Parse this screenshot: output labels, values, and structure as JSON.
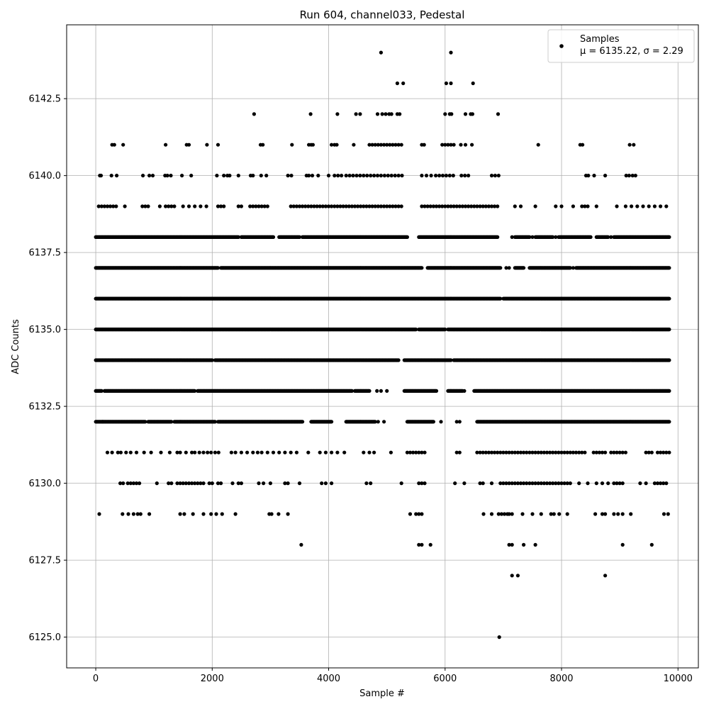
{
  "chart_data": {
    "type": "scatter",
    "title": "Run 604, channel033, Pedestal",
    "xlabel": "Sample #",
    "ylabel": "ADC Counts",
    "xlim": [
      -500,
      10350
    ],
    "ylim": [
      6124.0,
      6144.9
    ],
    "xticks": [
      0,
      2000,
      4000,
      6000,
      8000,
      10000
    ],
    "xtick_labels": [
      "0",
      "2000",
      "4000",
      "6000",
      "8000",
      "10000"
    ],
    "yticks": [
      6125.0,
      6127.5,
      6130.0,
      6132.5,
      6135.0,
      6137.5,
      6140.0,
      6142.5
    ],
    "ytick_labels": [
      "6125.0",
      "6127.5",
      "6130.0",
      "6132.5",
      "6135.0",
      "6137.5",
      "6140.0",
      "6142.5"
    ],
    "grid": true,
    "legend_position": "top-right",
    "marker_color": "#000000",
    "series": [
      {
        "name": "Samples",
        "legend_line2": "μ = 6135.22, σ = 2.29",
        "points_by_level": [
          {
            "y": 6144,
            "x": [
              4900,
              6100
            ]
          },
          {
            "y": 6143,
            "x": [
              5180,
              5280,
              6020,
              6100,
              6480
            ]
          },
          {
            "y": 6142,
            "x": [
              2720,
              3690,
              4150,
              4470,
              4540,
              4840,
              4920,
              4980,
              5040,
              5080,
              5180,
              5220,
              6000,
              6080,
              6110,
              6350,
              6440,
              6470,
              6910
            ]
          },
          {
            "y": 6141,
            "x": [
              280,
              320,
              470,
              1200,
              1560,
              1600,
              1910,
              2100,
              2830,
              2870,
              3370,
              3660,
              3700,
              3730,
              4050,
              4100,
              4140,
              4430,
              4700,
              4750,
              4800,
              4850,
              4900,
              4950,
              5000,
              5050,
              5100,
              5150,
              5200,
              5250,
              5600,
              5640,
              5950,
              6000,
              6050,
              6100,
              6150,
              6270,
              6350,
              6460,
              7600,
              8320,
              8360,
              9170,
              9240
            ]
          },
          {
            "y": 6140,
            "x": [
              70,
              90,
              270,
              360,
              810,
              920,
              980,
              1190,
              1230,
              1290,
              1480,
              1640,
              2080,
              2200,
              2260,
              2300,
              2450,
              2660,
              2700,
              2840,
              2930,
              3300,
              3360,
              3620,
              3660,
              3720,
              3820,
              4000,
              4100,
              4160,
              4220,
              4300,
              4360,
              4420,
              4480,
              4540,
              4600,
              4660,
              4720,
              4780,
              4840,
              4900,
              4960,
              5020,
              5080,
              5140,
              5200,
              5260,
              5600,
              5680,
              5760,
              5840,
              5900,
              5960,
              6020,
              6080,
              6140,
              6280,
              6340,
              6400,
              6800,
              6860,
              6920,
              8420,
              8460,
              8560,
              8750,
              9110,
              9160,
              9220,
              9270
            ]
          },
          {
            "y": 6139,
            "x": [
              50,
              100,
              150,
              200,
              250,
              300,
              350,
              500,
              800,
              850,
              900,
              1100,
              1200,
              1250,
              1300,
              1350,
              1500,
              1600,
              1700,
              1800,
              1900,
              2100,
              2150,
              2200,
              2450,
              2500,
              2650,
              2700,
              2750,
              2800,
              2850,
              2900,
              2950,
              3350,
              3400,
              3450,
              3500,
              3550,
              3600,
              3650,
              3700,
              3750,
              3800,
              3850,
              3900,
              3950,
              4000,
              4050,
              4100,
              4150,
              4200,
              4250,
              4300,
              4350,
              4400,
              4450,
              4500,
              4550,
              4600,
              4650,
              4700,
              4750,
              4800,
              4850,
              4900,
              4950,
              5000,
              5050,
              5100,
              5150,
              5200,
              5250,
              5600,
              5650,
              5700,
              5750,
              5800,
              5850,
              5900,
              5950,
              6000,
              6050,
              6100,
              6150,
              6200,
              6250,
              6300,
              6350,
              6400,
              6450,
              6500,
              6550,
              6600,
              6650,
              6700,
              6750,
              6800,
              6850,
              6900,
              7200,
              7300,
              7550,
              7900,
              8000,
              8200,
              8350,
              8400,
              8450,
              8600,
              8950,
              9100,
              9200,
              9300,
              9400,
              9500,
              9600,
              9700,
              9800
            ]
          },
          {
            "y": 6138,
            "x_ranges": [
              [
                0,
                2450
              ],
              [
                2500,
                3050
              ],
              [
                3150,
                3500
              ],
              [
                3550,
                5350
              ],
              [
                5550,
                6900
              ],
              [
                7200,
                7450
              ],
              [
                7550,
                7850
              ],
              [
                7950,
                8500
              ],
              [
                8600,
                8800
              ],
              [
                8900,
                9850
              ]
            ],
            "x": [
              7150,
              7500,
              7900,
              8850
            ]
          },
          {
            "y": 6137,
            "x_ranges": [
              [
                0,
                2100
              ],
              [
                2150,
                5600
              ],
              [
                5700,
                6950
              ],
              [
                7200,
                7350
              ],
              [
                7450,
                8150
              ],
              [
                8250,
                9850
              ]
            ],
            "x": [
              7050,
              7100,
              8200
            ]
          },
          {
            "y": 6136,
            "x_ranges": [
              [
                0,
                6950
              ],
              [
                7000,
                9850
              ]
            ]
          },
          {
            "y": 6135,
            "x_ranges": [
              [
                0,
                5500
              ],
              [
                5550,
                6000
              ],
              [
                6050,
                9850
              ]
            ]
          },
          {
            "y": 6134,
            "x_ranges": [
              [
                0,
                2000
              ],
              [
                2050,
                5200
              ],
              [
                5300,
                6100
              ],
              [
                6150,
                9850
              ]
            ]
          },
          {
            "y": 6133,
            "x_ranges": [
              [
                0,
                100
              ],
              [
                150,
                1700
              ],
              [
                1750,
                4400
              ],
              [
                4450,
                4700
              ],
              [
                5300,
                5850
              ],
              [
                6050,
                6300
              ],
              [
                6500,
                9850
              ]
            ],
            "x": [
              4830,
              4900,
              5000,
              6330
            ]
          },
          {
            "y": 6132,
            "x_ranges": [
              [
                0,
                850
              ],
              [
                900,
                1300
              ],
              [
                1350,
                2050
              ],
              [
                2100,
                3550
              ],
              [
                3700,
                4050
              ],
              [
                4300,
                4800
              ],
              [
                5350,
                5800
              ],
              [
                6550,
                9850
              ]
            ],
            "x": [
              120,
              4850,
              4950,
              5930,
              6200,
              6250
            ]
          },
          {
            "y": 6131,
            "x": [
              200,
              280,
              380,
              430,
              520,
              600,
              700,
              830,
              950,
              1120,
              1270,
              1400,
              1450,
              1550,
              1650,
              1700,
              1780,
              1850,
              1920,
              1980,
              2050,
              2110,
              2330,
              2400,
              2500,
              2600,
              2700,
              2780,
              2850,
              2950,
              3050,
              3150,
              3250,
              3350,
              3450,
              3650,
              3850,
              3950,
              4050,
              4150,
              4270,
              4600,
              4700,
              4780,
              5070,
              5350,
              5400,
              5450,
              5500,
              5550,
              5600,
              5650,
              6200,
              6250,
              6550,
              6600,
              6650,
              6700,
              6750,
              6800,
              6850,
              6900,
              6950,
              7000,
              7050,
              7100,
              7150,
              7200,
              7250,
              7300,
              7350,
              7400,
              7450,
              7500,
              7550,
              7600,
              7650,
              7700,
              7750,
              7800,
              7850,
              7900,
              7950,
              8000,
              8050,
              8100,
              8150,
              8200,
              8250,
              8300,
              8350,
              8400,
              8550,
              8600,
              8650,
              8700,
              8750,
              8850,
              8900,
              8950,
              9000,
              9050,
              9100,
              9450,
              9500,
              9550,
              9650,
              9700,
              9750,
              9800,
              9850
            ]
          },
          {
            "y": 6130,
            "x": [
              420,
              470,
              550,
              600,
              650,
              700,
              750,
              1050,
              1250,
              1300,
              1400,
              1450,
              1500,
              1550,
              1600,
              1650,
              1700,
              1750,
              1800,
              1850,
              1950,
              2000,
              2100,
              2150,
              2350,
              2450,
              2500,
              2800,
              2880,
              3000,
              3250,
              3300,
              3500,
              3880,
              3950,
              4050,
              4650,
              4720,
              5250,
              5550,
              5600,
              5650,
              6170,
              6330,
              6600,
              6650,
              6800,
              6950,
              7000,
              7050,
              7100,
              7150,
              7200,
              7250,
              7300,
              7350,
              7400,
              7450,
              7500,
              7550,
              7600,
              7650,
              7700,
              7750,
              7800,
              7850,
              7900,
              7950,
              8000,
              8050,
              8100,
              8150,
              8300,
              8450,
              8600,
              8700,
              8800,
              8900,
              8950,
              9000,
              9050,
              9350,
              9450,
              9600,
              9650,
              9700,
              9750,
              9800
            ]
          },
          {
            "y": 6129,
            "x": [
              60,
              460,
              560,
              650,
              720,
              770,
              920,
              1450,
              1520,
              1670,
              1850,
              1980,
              2070,
              2170,
              2400,
              2980,
              3020,
              3140,
              3300,
              5400,
              5500,
              5550,
              5600,
              6660,
              6800,
              6920,
              6970,
              7020,
              7070,
              7100,
              7150,
              7330,
              7500,
              7650,
              7820,
              7870,
              7960,
              8100,
              8580,
              8700,
              8750,
              8900,
              8970,
              9050,
              9190,
              9760,
              9830
            ]
          },
          {
            "y": 6128,
            "x": [
              3530,
              5550,
              5600,
              5750,
              7100,
              7150,
              7350,
              7550,
              9050,
              9550
            ]
          },
          {
            "y": 6127,
            "x": [
              7150,
              7250,
              8750
            ]
          },
          {
            "y": 6125,
            "x": [
              6930
            ]
          }
        ]
      }
    ]
  }
}
